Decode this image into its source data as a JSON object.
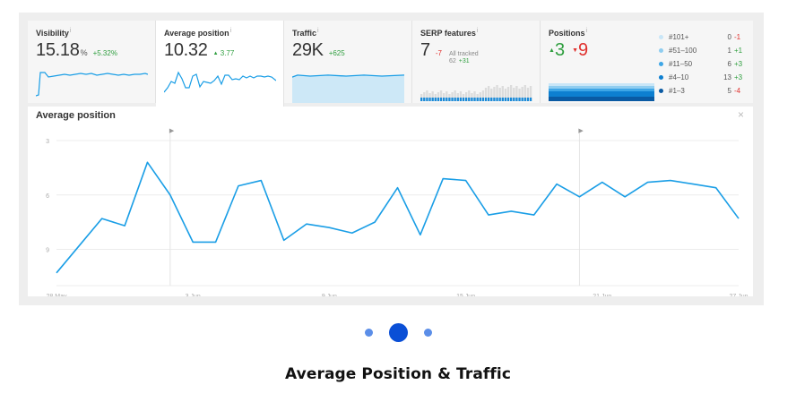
{
  "cards": {
    "visibility": {
      "title": "Visibility",
      "info": "i",
      "value": "15.18",
      "unit": "%",
      "delta": "+5.32%"
    },
    "avg_position": {
      "title": "Average position",
      "info": "i",
      "value": "10.32",
      "delta_arrow": "▲",
      "delta": "3.77"
    },
    "traffic": {
      "title": "Traffic",
      "info": "i",
      "value": "29K",
      "delta": "+625"
    },
    "serp": {
      "title": "SERP features",
      "info": "i",
      "value": "7",
      "delta": "-7",
      "all_tracked_label": "All tracked",
      "all_tracked_value": "62",
      "all_tracked_delta": "+31"
    },
    "positions": {
      "title": "Positions",
      "info": "i",
      "up_arrow": "▲",
      "up_value": "3",
      "down_arrow": "▼",
      "down_value": "9",
      "legend": [
        {
          "label": "#101+",
          "count": "0",
          "delta": "-1",
          "dir": "down",
          "color": "#c9e6f7"
        },
        {
          "label": "#51–100",
          "count": "1",
          "delta": "+1",
          "dir": "up",
          "color": "#8fcdf0"
        },
        {
          "label": "#11–50",
          "count": "6",
          "delta": "+3",
          "dir": "up",
          "color": "#3ea6e6"
        },
        {
          "label": "#4–10",
          "count": "13",
          "delta": "+3",
          "dir": "up",
          "color": "#0d7fd0"
        },
        {
          "label": "#1–3",
          "count": "5",
          "delta": "-4",
          "dir": "down",
          "color": "#0a5aa3"
        }
      ]
    }
  },
  "chart_panel": {
    "title": "Average position",
    "close_icon": "×",
    "marker_icon": "▶"
  },
  "chart_data": {
    "type": "line",
    "title": "Average position",
    "xlabel": "",
    "ylabel": "",
    "y_inverted": true,
    "ylim": [
      3,
      11
    ],
    "y_ticks": [
      3,
      6,
      9
    ],
    "x_ticks": [
      "28 May",
      "3 Jun",
      "9 Jun",
      "15 Jun",
      "21 Jun",
      "27 Jun"
    ],
    "x_tick_index": [
      0,
      6,
      12,
      18,
      24,
      30
    ],
    "annotations_at_index": [
      5,
      23
    ],
    "grid": true,
    "line_color": "#1a9ee6",
    "series": [
      {
        "values": [
          10.3,
          8.8,
          7.3,
          7.7,
          4.2,
          6.0,
          8.6,
          8.6,
          5.5,
          5.2,
          8.5,
          7.6,
          7.8,
          8.1,
          7.5,
          5.6,
          8.2,
          5.1,
          5.2,
          7.1,
          6.9,
          7.1,
          5.4,
          6.1,
          5.3,
          6.1,
          5.3,
          5.2,
          5.4,
          5.6,
          7.3
        ]
      }
    ]
  },
  "carousel": {
    "dots": 3,
    "active_index": 1
  },
  "caption": "Average Position & Traffic"
}
